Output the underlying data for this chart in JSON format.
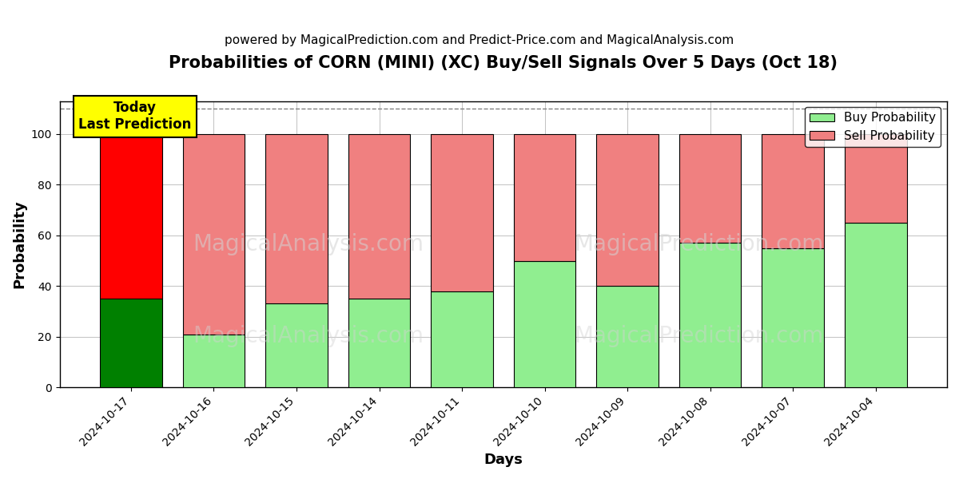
{
  "title": "Probabilities of CORN (MINI) (XC) Buy/Sell Signals Over 5 Days (Oct 18)",
  "subtitle": "powered by MagicalPrediction.com and Predict-Price.com and MagicalAnalysis.com",
  "xlabel": "Days",
  "ylabel": "Probability",
  "watermark_left": "MagicalAnalysis.com",
  "watermark_right": "MagicalPrediction.com",
  "dates": [
    "2024-10-17",
    "2024-10-16",
    "2024-10-15",
    "2024-10-14",
    "2024-10-11",
    "2024-10-10",
    "2024-10-09",
    "2024-10-08",
    "2024-10-07",
    "2024-10-04"
  ],
  "buy_values": [
    35,
    21,
    33,
    35,
    38,
    50,
    40,
    57,
    55,
    65
  ],
  "sell_values": [
    65,
    79,
    67,
    65,
    62,
    50,
    60,
    43,
    45,
    35
  ],
  "ylim": [
    0,
    113
  ],
  "dashed_line_y": 110,
  "today_label": "Today\nLast Prediction",
  "today_index": 0,
  "buy_color_today": "#008000",
  "sell_color_today": "#ff0000",
  "buy_color_normal": "#90ee90",
  "sell_color_normal": "#f08080",
  "buy_legend": "Buy Probability",
  "sell_legend": "Sell Probability",
  "bar_edge_color": "#000000",
  "bar_edge_width": 0.8,
  "background_color": "#ffffff",
  "grid_color": "#aaaaaa",
  "title_fontsize": 15,
  "subtitle_fontsize": 11,
  "axis_label_fontsize": 13,
  "tick_fontsize": 10,
  "legend_fontsize": 11,
  "today_box_color": "#ffff00",
  "figsize": [
    12,
    6
  ],
  "dpi": 100
}
